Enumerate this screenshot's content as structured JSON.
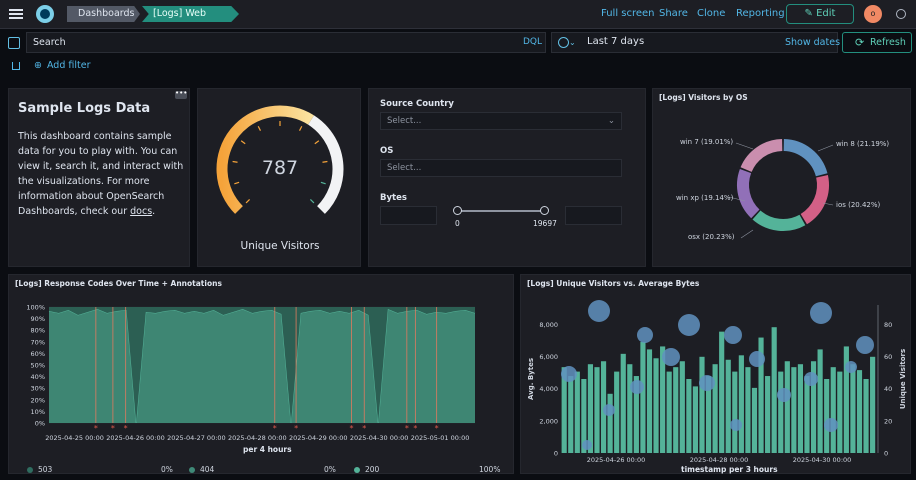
{
  "header": {
    "crumbs": [
      "Dashboards",
      "[Logs] Web Traffic"
    ],
    "links": [
      "Full screen",
      "Share",
      "Clone",
      "Reporting"
    ],
    "edit": "Edit",
    "avatar": "o"
  },
  "query": {
    "search": "Search",
    "dql": "DQL",
    "range": "Last 7 days",
    "show_dates": "Show dates",
    "refresh": "Refresh"
  },
  "filter": {
    "add": "Add filter"
  },
  "markdown": {
    "title": "Sample Logs Data",
    "body": "This dashboard contains sample data for you to play with. You can view it, search it, and interact with the visualizations. For more information about OpenSearch Dashboards, check our ",
    "link": "docs",
    "end": "."
  },
  "gauge": {
    "value": "787",
    "label": "Unique Visitors",
    "fraction": 0.62
  },
  "controls": {
    "country_label": "Source Country",
    "country_placeholder": "Select...",
    "os_label": "OS",
    "os_placeholder": "Select...",
    "bytes_label": "Bytes",
    "min": "0",
    "max": "19697"
  },
  "os_chart": {
    "title": "[Logs] Visitors by OS",
    "slices": [
      {
        "name": "win 8",
        "pct": 21.19,
        "label": "win 8 (21.19%)",
        "color": "#6092c0"
      },
      {
        "name": "ios",
        "pct": 20.42,
        "label": "ios (20.42%)",
        "color": "#d36086"
      },
      {
        "name": "osx",
        "pct": 20.23,
        "label": "osx (20.23%)",
        "color": "#54b399"
      },
      {
        "name": "win xp",
        "pct": 19.14,
        "label": "win xp (19.14%)",
        "color": "#9170b8"
      },
      {
        "name": "win 7",
        "pct": 19.01,
        "label": "win 7 (19.01%)",
        "color": "#ca8eae"
      }
    ]
  },
  "resp_chart": {
    "title": "[Logs] Response Codes Over Time + Annotations",
    "xlabel": "per 4 hours",
    "yticks": [
      "100%",
      "90%",
      "80%",
      "70%",
      "60%",
      "50%",
      "40%",
      "30%",
      "20%",
      "10%",
      "0%"
    ],
    "xticks": [
      "2025-04-25 00:00",
      "2025-04-26 00:00",
      "2025-04-27 00:00",
      "2025-04-28 00:00",
      "2025-04-29 00:00",
      "2025-04-30 00:00",
      "2025-05-01 00:00"
    ],
    "legend": [
      {
        "name": "503",
        "pct": "0%",
        "color": "#54b399"
      },
      {
        "name": "404",
        "pct": "0%",
        "color": "#54b399"
      },
      {
        "name": "200",
        "pct": "100%",
        "color": "#54b399"
      }
    ]
  },
  "uv_chart": {
    "title": "[Logs] Unique Visitors vs. Average Bytes",
    "xlabel": "timestamp per 3 hours",
    "ylabel_left": "Avg. Bytes",
    "ylabel_right": "Unique Visitors",
    "yticks_left": [
      "0",
      "2,000",
      "4,000",
      "6,000",
      "8,000"
    ],
    "yticks_right": [
      "0",
      "20",
      "40",
      "60",
      "80"
    ],
    "xticks": [
      "2025-04-26 00:00",
      "2025-04-28 00:00",
      "2025-04-30 00:00"
    ]
  }
}
